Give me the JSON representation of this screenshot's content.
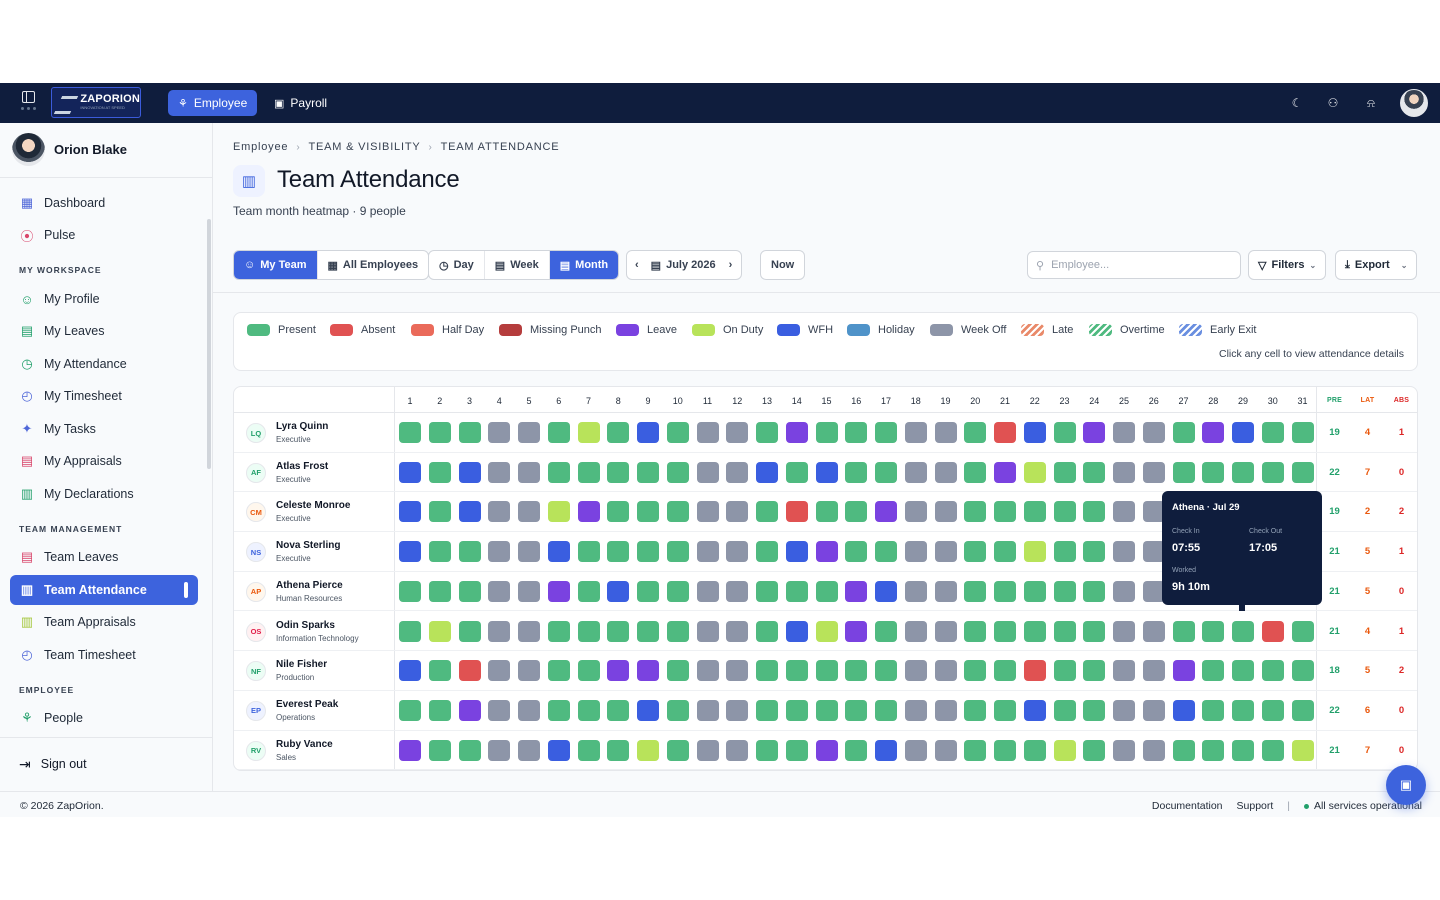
{
  "topbar": {
    "logo_text": "ZAPORION",
    "logo_tagline": "INNOVATION AT SPEED",
    "nav": [
      {
        "label": "Employee",
        "active": true,
        "icon": "people-icon"
      },
      {
        "label": "Payroll",
        "active": false,
        "icon": "money-icon"
      }
    ],
    "icons": [
      "moon-icon",
      "user-settings-icon",
      "bell-icon"
    ]
  },
  "sidebar": {
    "user_name": "Orion Blake",
    "top_items": [
      {
        "label": "Dashboard",
        "icon": "grid-icon"
      },
      {
        "label": "Pulse",
        "icon": "broadcast-icon"
      }
    ],
    "sections": [
      {
        "title": "MY WORKSPACE",
        "items": [
          {
            "label": "My Profile",
            "icon": "user-icon"
          },
          {
            "label": "My Leaves",
            "icon": "calendar-icon"
          },
          {
            "label": "My Attendance",
            "icon": "clock-icon"
          },
          {
            "label": "My Timesheet",
            "icon": "stopwatch-icon"
          },
          {
            "label": "My Tasks",
            "icon": "sparkle-icon"
          },
          {
            "label": "My Appraisals",
            "icon": "document-icon"
          },
          {
            "label": "My Declarations",
            "icon": "receipt-icon"
          }
        ]
      },
      {
        "title": "TEAM MANAGEMENT",
        "items": [
          {
            "label": "Team Leaves",
            "icon": "calendar-icon"
          },
          {
            "label": "Team Attendance",
            "icon": "clipboard-icon",
            "active": true
          },
          {
            "label": "Team Appraisals",
            "icon": "clipboard-check-icon"
          },
          {
            "label": "Team Timesheet",
            "icon": "stopwatch-icon"
          }
        ]
      },
      {
        "title": "EMPLOYEE",
        "items": [
          {
            "label": "People",
            "icon": "people-icon"
          }
        ]
      }
    ],
    "sign_out": "Sign out"
  },
  "breadcrumb": [
    "Employee",
    "TEAM & VISIBILITY",
    "TEAM ATTENDANCE"
  ],
  "page": {
    "title": "Team Attendance",
    "subtitle": "Team month heatmap · 9 people"
  },
  "controls": {
    "scope": [
      {
        "label": "My Team",
        "active": true
      },
      {
        "label": "All Employees",
        "active": false
      }
    ],
    "views": [
      {
        "label": "Day",
        "active": false
      },
      {
        "label": "Week",
        "active": false
      },
      {
        "label": "Month",
        "active": true
      }
    ],
    "period": "July 2026",
    "now": "Now",
    "search_placeholder": "Employee...",
    "filters": "Filters",
    "export": "Export"
  },
  "legend": {
    "items": [
      {
        "label": "Present",
        "color": "#4fba80",
        "pattern": false
      },
      {
        "label": "Absent",
        "color": "#e05252",
        "pattern": false
      },
      {
        "label": "Half Day",
        "color": "#ea6a5a",
        "pattern": false
      },
      {
        "label": "Missing Punch",
        "color": "#b53d3d",
        "pattern": false
      },
      {
        "label": "Leave",
        "color": "#7a42e0",
        "pattern": false
      },
      {
        "label": "On Duty",
        "color": "#b8e35a",
        "pattern": false
      },
      {
        "label": "WFH",
        "color": "#3a5ee0",
        "pattern": false
      },
      {
        "label": "Holiday",
        "color": "#4f93c9",
        "pattern": false
      },
      {
        "label": "Week Off",
        "color": "#8d95a8",
        "pattern": false
      },
      {
        "label": "Late",
        "color": "#e98a6a",
        "pattern": true
      },
      {
        "label": "Overtime",
        "color": "#4fba80",
        "pattern": true
      },
      {
        "label": "Early Exit",
        "color": "#6a8fe0",
        "pattern": true
      }
    ],
    "note": "Click any cell to view attendance details"
  },
  "status_colors": {
    "P": "#4fba80",
    "A": "#e05252",
    "L": "#7a42e0",
    "O": "#b8e35a",
    "W": "#3a5ee0",
    "X": "#8d95a8"
  },
  "heatmap": {
    "days": [
      "1",
      "2",
      "3",
      "4",
      "5",
      "6",
      "7",
      "8",
      "9",
      "10",
      "11",
      "12",
      "13",
      "14",
      "15",
      "16",
      "17",
      "18",
      "19",
      "20",
      "21",
      "22",
      "23",
      "24",
      "25",
      "26",
      "27",
      "28",
      "29",
      "30",
      "31"
    ],
    "summary_headers": [
      "PRE",
      "LAT",
      "ABS"
    ],
    "rows": [
      {
        "initials": "LQ",
        "name": "Lyra Quinn",
        "role": "Executive",
        "cells": "PPPXXPOPWPXXPLPPPXXPAWPLXXPLWPP",
        "pre": "19",
        "lat": "4",
        "abs": "1"
      },
      {
        "initials": "AF",
        "name": "Atlas Frost",
        "role": "Executive",
        "cells": "WPWXXPPPPPXXWPWPPXXPLOPPXXPPPPP",
        "pre": "22",
        "lat": "7",
        "abs": "0"
      },
      {
        "initials": "CM",
        "name": "Celeste Monroe",
        "role": "Executive",
        "cells": "WPWXXOLPPPXXPAPPLXXPPPPPXXPPPPP",
        "pre": "19",
        "lat": "2",
        "abs": "2"
      },
      {
        "initials": "NS",
        "name": "Nova Sterling",
        "role": "Executive",
        "cells": "WPPXXWPPPPXXPWLPPXXPPOPPXXPPPPP",
        "pre": "21",
        "lat": "5",
        "abs": "1"
      },
      {
        "initials": "AP",
        "name": "Athena Pierce",
        "role": "Human Resources",
        "cells": "PPPXXLPWPPXXPPPLWXXPPPPPXXPPPPP",
        "pre": "21",
        "lat": "5",
        "abs": "0"
      },
      {
        "initials": "OS",
        "name": "Odin Sparks",
        "role": "Information Technology",
        "cells": "POPXXPPPPPXXPWOLPXXPPPPPXXPPPAP",
        "pre": "21",
        "lat": "4",
        "abs": "1"
      },
      {
        "initials": "NF",
        "name": "Nile Fisher",
        "role": "Production",
        "cells": "WPAXXPPLLPXXPPPPPXXPPAPPXXLPPPP",
        "pre": "18",
        "lat": "5",
        "abs": "2"
      },
      {
        "initials": "EP",
        "name": "Everest Peak",
        "role": "Operations",
        "cells": "PPLXXPPPWPXXPPPPPXXPPWPPXXWPPPP",
        "pre": "22",
        "lat": "6",
        "abs": "0"
      },
      {
        "initials": "RV",
        "name": "Ruby Vance",
        "role": "Sales",
        "cells": "LPPXXWPPOPXXPPLPWXXPPPOPXXPPPPO",
        "pre": "21",
        "lat": "7",
        "abs": "0"
      }
    ]
  },
  "tooltip": {
    "title": "Athena · Jul 29",
    "check_in_label": "Check In",
    "check_in": "07:55",
    "check_out_label": "Check Out",
    "check_out": "17:05",
    "worked_label": "Worked",
    "worked": "9h 10m"
  },
  "footer": {
    "copyright": "© 2026 ZapOrion.",
    "documentation": "Documentation",
    "support": "Support",
    "status": "All services operational"
  }
}
